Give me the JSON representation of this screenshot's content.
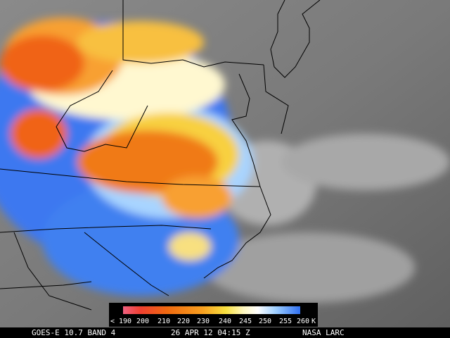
{
  "colorbar": {
    "labels": [
      "< 190",
      "200",
      "210",
      "220",
      "230",
      "240",
      "245",
      "250",
      "255",
      "260",
      "K"
    ]
  },
  "footer": {
    "satellite": "GOES-E 10.7 BAND 4",
    "timestamp": "26 APR 12 04:15 Z",
    "source": "NASA LARC"
  }
}
